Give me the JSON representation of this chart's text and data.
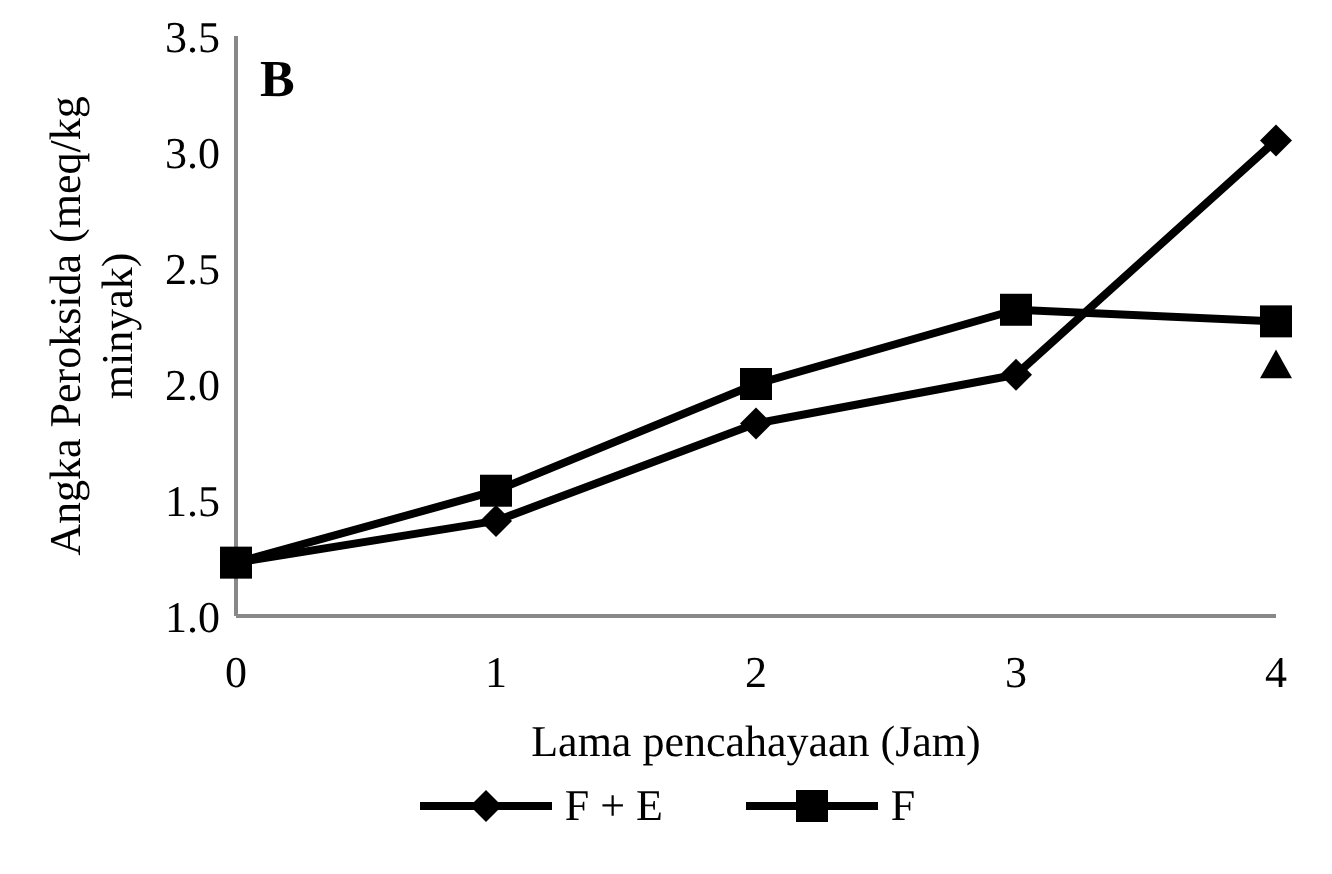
{
  "chart_data": {
    "type": "line",
    "xlabel": "Lama pencahayaan (Jam)",
    "ylabel": "Angka Peroksida (meq/kg minyak)",
    "categories": [
      "0",
      "1",
      "2",
      "3",
      "4"
    ],
    "ylim": [
      1.0,
      3.5
    ],
    "yticks": [
      {
        "value": 1.0,
        "label": "1.0"
      },
      {
        "value": 1.5,
        "label": "1.5"
      },
      {
        "value": 2.0,
        "label": "2.0"
      },
      {
        "value": 2.5,
        "label": "2.5"
      },
      {
        "value": 3.0,
        "label": "3.0"
      },
      {
        "value": 3.5,
        "label": "3.5"
      }
    ],
    "series": [
      {
        "name": "F + E",
        "color": "#000000",
        "marker": "diamond",
        "values": [
          1.23,
          1.41,
          1.83,
          2.04,
          3.05
        ]
      },
      {
        "name": "F",
        "color": "#000000",
        "marker": "square",
        "values": [
          1.23,
          1.54,
          2.0,
          2.32,
          2.27
        ]
      },
      {
        "type": "scatter",
        "color": "#000000",
        "marker": "triangle",
        "values": [
          null,
          null,
          null,
          null,
          2.08
        ]
      }
    ],
    "annotations": [
      "B"
    ],
    "grid": false,
    "legend": "bottom"
  }
}
